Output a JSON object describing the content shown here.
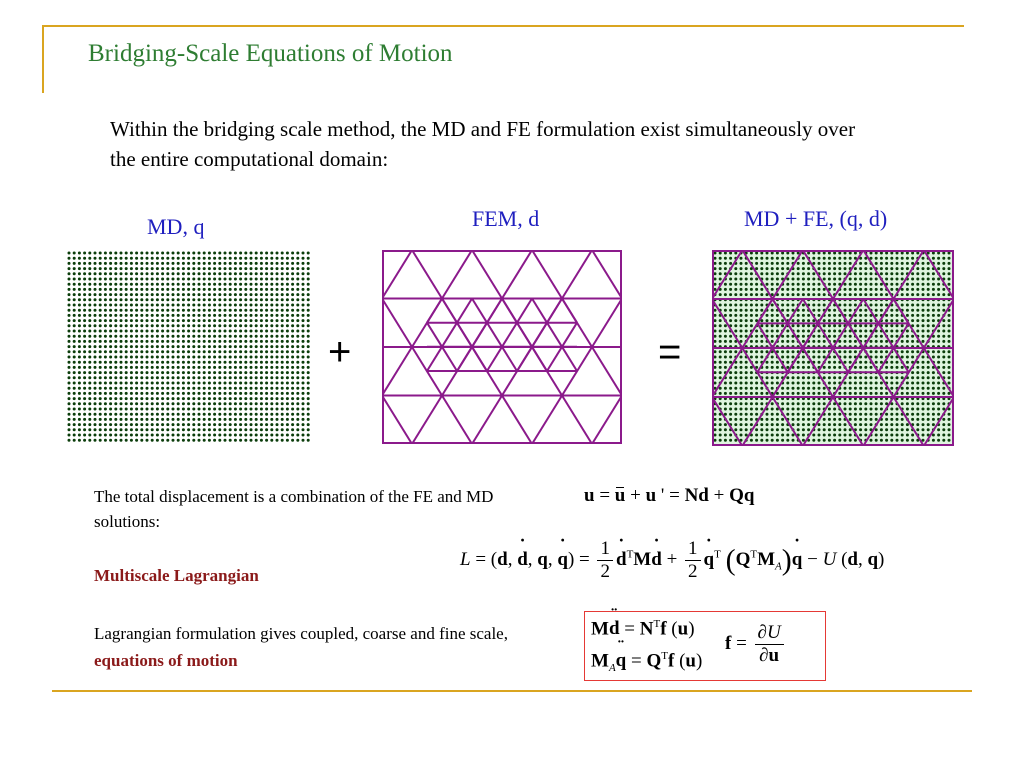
{
  "title": "Bridging-Scale Equations of Motion",
  "intro": "Within the bridging scale method, the MD and FE formulation exist simultaneously over the entire computational domain:",
  "panels": {
    "md": "MD, q",
    "fem": "FEM, d",
    "combined": "MD + FE, (q, d)"
  },
  "operators": {
    "plus": "+",
    "equals": "="
  },
  "description": {
    "line1": "The total displacement is a combination of the FE and MD solutions:",
    "heading": "Multiscale Lagrangian",
    "line2_prefix": "Lagrangian formulation gives coupled, coarse and fine scale, ",
    "line2_highlight": "equations of motion"
  },
  "colors": {
    "title": "#2e7d32",
    "panel_label": "#1f1fbf",
    "highlight": "#8b1a1a",
    "mesh": "#8b1a8b",
    "md_dots": "#0b3d0b",
    "md_fill": "#dff5df",
    "box_border": "#e53935",
    "rule": "#daa520"
  }
}
